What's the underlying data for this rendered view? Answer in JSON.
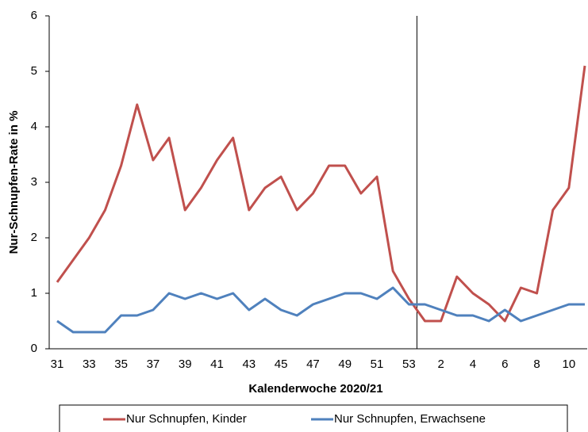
{
  "chart_data": {
    "type": "line",
    "x_label": "Kalenderwoche 2020/21",
    "y_label": "Nur-Schnupfen-Rate in %",
    "categories": [
      "31",
      null,
      "33",
      null,
      "35",
      null,
      "37",
      null,
      "39",
      null,
      "41",
      null,
      "43",
      null,
      "45",
      null,
      "47",
      null,
      "49",
      null,
      "51",
      null,
      "53",
      null,
      "2",
      null,
      "4",
      null,
      "6",
      null,
      "8",
      null,
      "10",
      null
    ],
    "series": [
      {
        "name": "Nur Schnupfen, Kinder",
        "color": "#c0504d",
        "values": [
          1.2,
          1.6,
          2.0,
          2.5,
          3.3,
          4.4,
          3.4,
          3.8,
          2.5,
          2.9,
          3.4,
          3.8,
          2.5,
          2.9,
          3.1,
          2.5,
          2.8,
          3.3,
          3.3,
          2.8,
          3.1,
          1.4,
          0.9,
          0.5,
          0.5,
          1.3,
          1.0,
          0.8,
          0.5,
          1.1,
          1.0,
          2.5,
          2.9,
          5.1
        ]
      },
      {
        "name": "Nur Schnupfen, Erwachsene",
        "color": "#4f81bd",
        "values": [
          0.5,
          0.3,
          0.3,
          0.3,
          0.6,
          0.6,
          0.7,
          1.0,
          0.9,
          1.0,
          0.9,
          1.0,
          0.7,
          0.9,
          0.7,
          0.6,
          0.8,
          0.9,
          1.0,
          1.0,
          0.9,
          1.1,
          0.8,
          0.8,
          0.7,
          0.6,
          0.6,
          0.5,
          0.7,
          0.5,
          0.6,
          0.7,
          0.8,
          0.8
        ]
      }
    ],
    "ylim": [
      0,
      6
    ],
    "yticks": [
      0,
      1,
      2,
      3,
      4,
      5,
      6
    ],
    "grid": false,
    "legend": "bottom"
  }
}
